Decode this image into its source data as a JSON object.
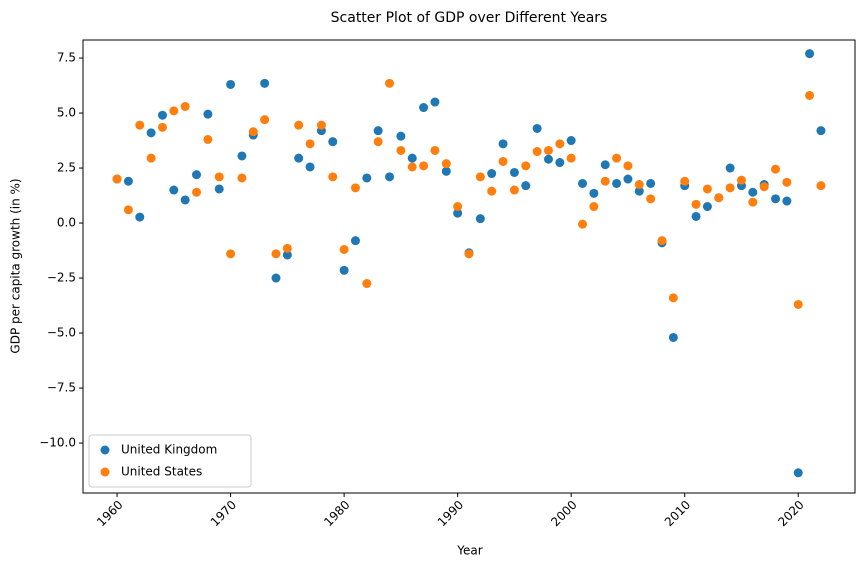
{
  "chart_data": {
    "type": "scatter",
    "title": "Scatter Plot of GDP over Different Years",
    "x_label": "Year",
    "y_label": "GDP per capita growth (in %)",
    "x": [
      1960,
      1961,
      1962,
      1963,
      1964,
      1965,
      1966,
      1967,
      1968,
      1969,
      1970,
      1971,
      1972,
      1973,
      1974,
      1975,
      1976,
      1977,
      1978,
      1979,
      1980,
      1981,
      1982,
      1983,
      1984,
      1985,
      1986,
      1987,
      1988,
      1989,
      1990,
      1991,
      1992,
      1993,
      1994,
      1995,
      1996,
      1997,
      1998,
      1999,
      2000,
      2001,
      2002,
      2003,
      2004,
      2005,
      2006,
      2007,
      2008,
      2009,
      2010,
      2011,
      2012,
      2013,
      2014,
      2015,
      2016,
      2017,
      2018,
      2019,
      2020,
      2021,
      2022
    ],
    "series": [
      {
        "name": "United Kingdom",
        "color": "#1f77b4",
        "values": [
          2.0,
          1.9,
          0.27,
          4.1,
          4.9,
          1.5,
          1.05,
          2.2,
          4.95,
          1.55,
          6.3,
          3.05,
          4.0,
          6.35,
          -2.5,
          -1.45,
          2.95,
          2.55,
          4.2,
          3.7,
          -2.15,
          -0.8,
          2.05,
          4.2,
          2.1,
          3.95,
          2.95,
          5.25,
          5.5,
          2.35,
          0.45,
          -1.35,
          0.2,
          2.25,
          3.6,
          2.3,
          1.7,
          4.3,
          2.9,
          2.75,
          3.75,
          1.8,
          1.35,
          2.65,
          1.8,
          2.0,
          1.45,
          1.8,
          -0.9,
          -5.2,
          1.7,
          0.3,
          0.75,
          1.15,
          2.5,
          1.7,
          1.4,
          1.75,
          1.1,
          1.0,
          -11.35,
          7.7,
          4.2
        ]
      },
      {
        "name": "United States",
        "color": "#ff7f0e",
        "values": [
          2.0,
          0.6,
          4.45,
          2.95,
          4.35,
          5.1,
          5.3,
          1.4,
          3.8,
          2.1,
          -1.4,
          2.05,
          4.15,
          4.7,
          -1.4,
          -1.15,
          4.45,
          3.6,
          4.45,
          2.1,
          -1.2,
          1.6,
          -2.75,
          3.7,
          6.35,
          3.3,
          2.55,
          2.6,
          3.3,
          2.7,
          0.75,
          -1.4,
          2.1,
          1.45,
          2.8,
          1.5,
          2.6,
          3.25,
          3.3,
          3.6,
          2.95,
          -0.05,
          0.75,
          1.9,
          2.95,
          2.6,
          1.75,
          1.1,
          -0.8,
          -3.4,
          1.9,
          0.85,
          1.55,
          1.15,
          1.6,
          1.95,
          0.95,
          1.65,
          2.45,
          1.85,
          -3.7,
          5.8,
          1.7
        ]
      }
    ],
    "xlim": [
      1957.0,
      2025.0
    ],
    "ylim": [
      -12.27,
      8.32
    ],
    "xticks": [
      1960,
      1970,
      1980,
      1990,
      2000,
      2010,
      2020
    ],
    "yticks": [
      {
        "value": -10,
        "label": "−10.0"
      },
      {
        "value": -7.5,
        "label": "−7.5"
      },
      {
        "value": -5,
        "label": "−5.0"
      },
      {
        "value": -2.5,
        "label": "−2.5"
      },
      {
        "value": 0,
        "label": "0.0"
      },
      2.5,
      {
        "value": 5,
        "label": "5.0"
      },
      7.5
    ],
    "legend": "lower left"
  }
}
